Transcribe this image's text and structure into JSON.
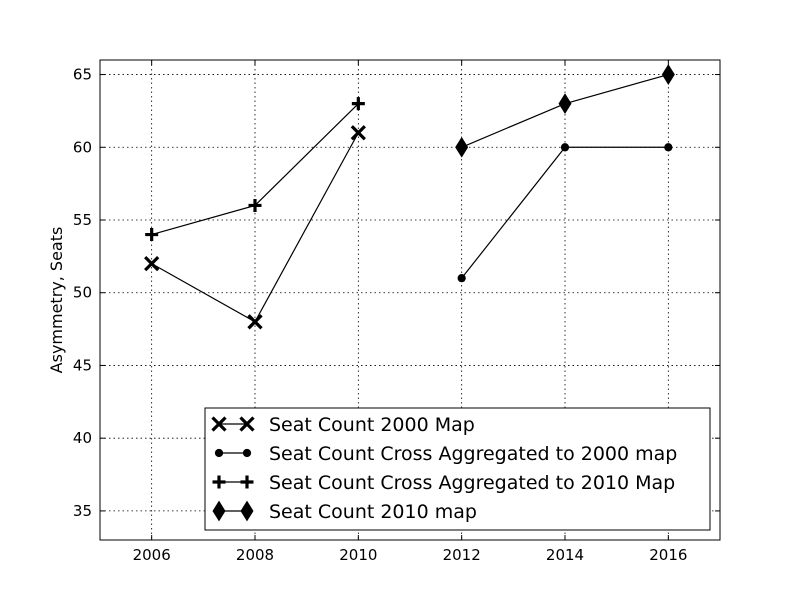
{
  "chart_data": {
    "type": "line",
    "title": "",
    "xlabel": "",
    "ylabel": "Asymmetry, Seats",
    "xlim": [
      2005,
      2017
    ],
    "ylim": [
      33,
      66
    ],
    "xticks": [
      2006,
      2008,
      2010,
      2012,
      2014,
      2016
    ],
    "yticks": [
      35,
      40,
      45,
      50,
      55,
      60,
      65
    ],
    "grid": true,
    "legend_position": "lower-right",
    "series": [
      {
        "name": "Seat Count 2000 Map",
        "marker": "x",
        "color": "#000000",
        "x": [
          2006,
          2008,
          2010
        ],
        "y": [
          52,
          48,
          61
        ]
      },
      {
        "name": "Seat Count Cross Aggregated to 2000 map",
        "marker": "circle",
        "color": "#000000",
        "x": [
          2012,
          2014,
          2016
        ],
        "y": [
          51,
          60,
          60
        ]
      },
      {
        "name": "Seat Count Cross Aggregated to 2010 Map",
        "marker": "plus",
        "color": "#000000",
        "x": [
          2006,
          2008,
          2010
        ],
        "y": [
          54,
          56,
          63
        ]
      },
      {
        "name": "Seat Count 2010 map",
        "marker": "diamond",
        "color": "#000000",
        "x": [
          2012,
          2014,
          2016
        ],
        "y": [
          60,
          63,
          65
        ]
      }
    ]
  }
}
